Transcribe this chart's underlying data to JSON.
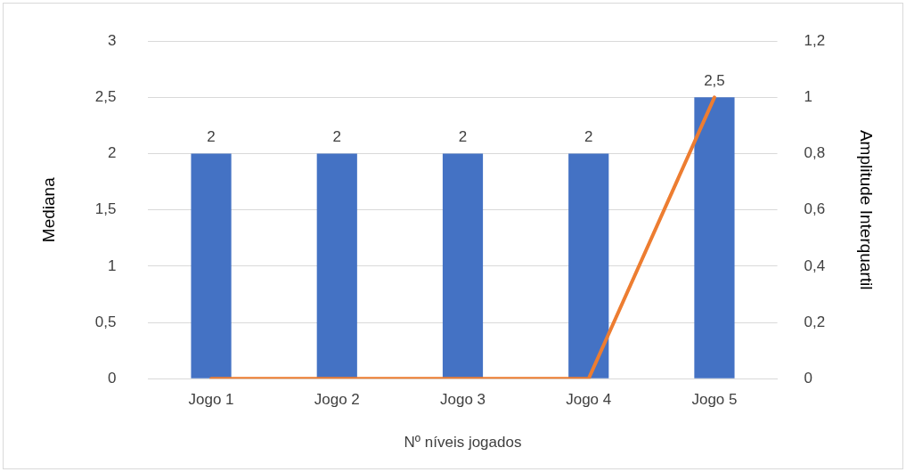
{
  "chart_data": {
    "type": "bar",
    "xlabel": "Nº níveis jogados",
    "ylabel": "Mediana",
    "y2label": "Amplitude Interquartil",
    "categories": [
      "Jogo 1",
      "Jogo 2",
      "Jogo 3",
      "Jogo 4",
      "Jogo 5"
    ],
    "series": [
      {
        "color": "#4472c4",
        "values": [
          2,
          2,
          2,
          2,
          2.5
        ],
        "value_labels": [
          "2",
          "2",
          "2",
          "2",
          "2,5"
        ]
      },
      {
        "type": "line",
        "axis": "y2",
        "color": "#ed7d31",
        "values": [
          0,
          0,
          0,
          0,
          1
        ]
      }
    ],
    "ylim": [
      0,
      3
    ],
    "yticks": [
      0,
      {
        "value": 0.5,
        "label": "0,5"
      },
      1,
      {
        "value": 1.5,
        "label": "1,5"
      },
      2,
      {
        "value": 2.5,
        "label": "2,5"
      },
      3
    ],
    "y2lim": [
      0,
      1.2
    ],
    "y2ticks": [
      0,
      {
        "value": 0.2,
        "label": "0,2"
      },
      {
        "value": 0.4,
        "label": "0,4"
      },
      {
        "value": 0.6,
        "label": "0,6"
      },
      {
        "value": 0.8,
        "label": "0,8"
      },
      1,
      {
        "value": 1.2,
        "label": "1,2"
      }
    ],
    "grid": "y",
    "legend": false,
    "marker": "none",
    "line_style": "solid"
  }
}
